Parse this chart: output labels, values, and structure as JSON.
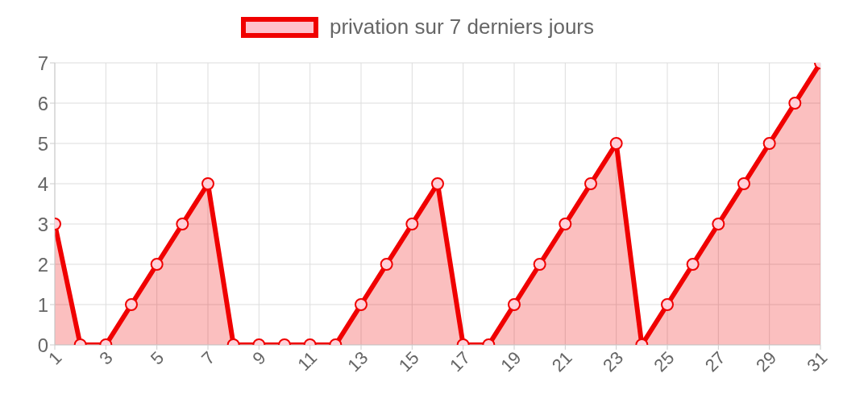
{
  "chart_data": {
    "type": "area",
    "x": [
      1,
      2,
      3,
      4,
      5,
      6,
      7,
      8,
      9,
      10,
      11,
      12,
      13,
      14,
      15,
      16,
      17,
      18,
      19,
      20,
      21,
      22,
      23,
      24,
      25,
      26,
      27,
      28,
      29,
      30,
      31
    ],
    "series": [
      {
        "name": "privation sur 7 derniers jours",
        "color": "#f00000",
        "values": [
          3,
          0,
          0,
          1,
          2,
          3,
          4,
          0,
          0,
          0,
          0,
          0,
          1,
          2,
          3,
          4,
          0,
          0,
          1,
          2,
          3,
          4,
          5,
          0,
          1,
          2,
          3,
          4,
          5,
          6,
          7
        ]
      }
    ],
    "xlim": [
      1,
      31
    ],
    "xticks": [
      1,
      3,
      5,
      7,
      9,
      11,
      13,
      15,
      17,
      19,
      21,
      23,
      25,
      27,
      29,
      31
    ],
    "ylim": [
      0,
      7
    ],
    "yticks": [
      0,
      1,
      2,
      3,
      4,
      5,
      6,
      7
    ],
    "grid": true,
    "legend": "top",
    "marker": "circle",
    "line_style": "solid"
  }
}
